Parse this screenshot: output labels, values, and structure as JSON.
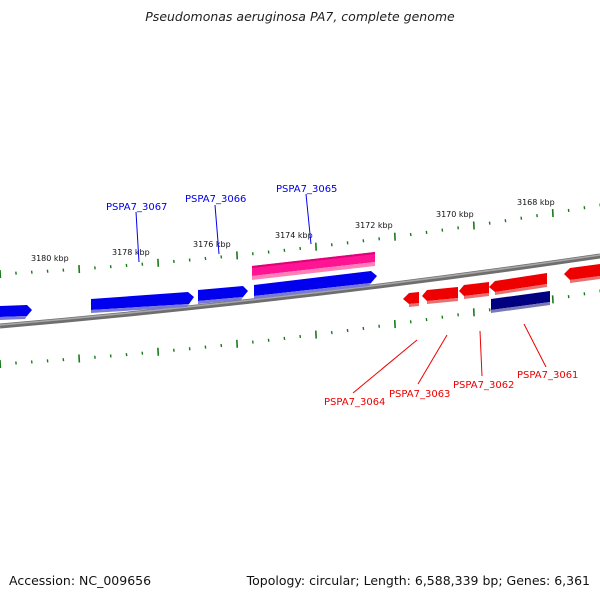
{
  "title": "Pseudomonas aeruginosa PA7, complete genome",
  "footer": {
    "accession": "Accession: NC_009656",
    "summary": "Topology: circular; Length: 6,588,339 bp; Genes: 6,361"
  },
  "ticks": [
    "3168 kbp",
    "3170 kbp",
    "3172 kbp",
    "3174 kbp",
    "3176 kbp",
    "3178 kbp",
    "3180 kbp"
  ],
  "colors": {
    "forward_gene": "#0000ee",
    "reverse_gene": "#ee0000",
    "highlight_gene": "#ff1493",
    "dark_gene": "#000080",
    "backbone": "#808080",
    "tick": "#1a7a1a"
  },
  "genes_forward": [
    "PSPA7_3067",
    "PSPA7_3066",
    "PSPA7_3065"
  ],
  "genes_reverse": [
    "PSPA7_3064",
    "PSPA7_3063",
    "PSPA7_3062",
    "PSPA7_3061"
  ]
}
